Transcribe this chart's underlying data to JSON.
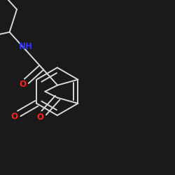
{
  "background_color": "#1a1a1a",
  "bond_color": "#d8d8d8",
  "bond_width": 1.4,
  "atom_label_color_O": "#ff2020",
  "atom_label_color_N": "#3030ff",
  "font_size": 8.5,
  "xlim": [
    0.0,
    2.2
  ],
  "ylim": [
    0.0,
    2.2
  ],
  "figsize": [
    2.5,
    2.5
  ],
  "dpi": 100
}
